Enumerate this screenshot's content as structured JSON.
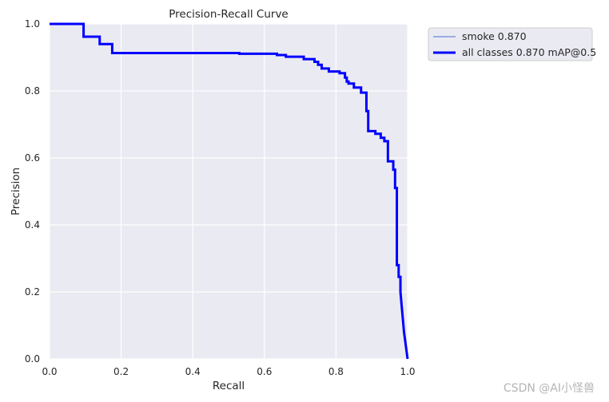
{
  "chart_data": {
    "type": "line",
    "title": "Precision-Recall Curve",
    "xlabel": "Recall",
    "ylabel": "Precision",
    "xlim": [
      0.0,
      1.0
    ],
    "ylim": [
      0.0,
      1.0
    ],
    "xticks": [
      "0.0",
      "0.2",
      "0.4",
      "0.6",
      "0.8",
      "1.0"
    ],
    "yticks": [
      "0.0",
      "0.2",
      "0.4",
      "0.6",
      "0.8",
      "1.0"
    ],
    "grid": true,
    "legend_position": "outside-top-right",
    "series": [
      {
        "name": "smoke 0.870",
        "color": "#4a6fd0",
        "style": "thin",
        "points": [
          [
            0.0,
            1.0
          ],
          [
            0.095,
            1.0
          ],
          [
            0.095,
            0.962
          ],
          [
            0.14,
            0.962
          ],
          [
            0.14,
            0.94
          ],
          [
            0.175,
            0.94
          ],
          [
            0.175,
            0.913
          ],
          [
            0.53,
            0.913
          ],
          [
            0.53,
            0.911
          ],
          [
            0.635,
            0.911
          ],
          [
            0.635,
            0.907
          ],
          [
            0.66,
            0.907
          ],
          [
            0.66,
            0.902
          ],
          [
            0.71,
            0.902
          ],
          [
            0.71,
            0.895
          ],
          [
            0.74,
            0.895
          ],
          [
            0.74,
            0.887
          ],
          [
            0.75,
            0.887
          ],
          [
            0.75,
            0.878
          ],
          [
            0.76,
            0.878
          ],
          [
            0.76,
            0.867
          ],
          [
            0.78,
            0.867
          ],
          [
            0.78,
            0.858
          ],
          [
            0.81,
            0.858
          ],
          [
            0.81,
            0.853
          ],
          [
            0.825,
            0.853
          ],
          [
            0.825,
            0.84
          ],
          [
            0.83,
            0.84
          ],
          [
            0.83,
            0.828
          ],
          [
            0.835,
            0.828
          ],
          [
            0.835,
            0.822
          ],
          [
            0.85,
            0.822
          ],
          [
            0.85,
            0.81
          ],
          [
            0.87,
            0.81
          ],
          [
            0.87,
            0.795
          ],
          [
            0.885,
            0.795
          ],
          [
            0.885,
            0.74
          ],
          [
            0.89,
            0.74
          ],
          [
            0.89,
            0.68
          ],
          [
            0.91,
            0.68
          ],
          [
            0.91,
            0.672
          ],
          [
            0.925,
            0.672
          ],
          [
            0.925,
            0.66
          ],
          [
            0.935,
            0.66
          ],
          [
            0.935,
            0.65
          ],
          [
            0.945,
            0.65
          ],
          [
            0.945,
            0.59
          ],
          [
            0.96,
            0.59
          ],
          [
            0.96,
            0.565
          ],
          [
            0.965,
            0.565
          ],
          [
            0.965,
            0.51
          ],
          [
            0.97,
            0.51
          ],
          [
            0.97,
            0.28
          ],
          [
            0.975,
            0.28
          ],
          [
            0.975,
            0.245
          ],
          [
            0.98,
            0.245
          ],
          [
            0.98,
            0.2
          ],
          [
            0.99,
            0.08
          ],
          [
            1.0,
            0.0
          ]
        ]
      },
      {
        "name": "all classes 0.870 mAP@0.5",
        "color": "#0000ff",
        "style": "thick",
        "points": [
          [
            0.0,
            1.0
          ],
          [
            0.095,
            1.0
          ],
          [
            0.095,
            0.962
          ],
          [
            0.14,
            0.962
          ],
          [
            0.14,
            0.94
          ],
          [
            0.175,
            0.94
          ],
          [
            0.175,
            0.913
          ],
          [
            0.53,
            0.913
          ],
          [
            0.53,
            0.911
          ],
          [
            0.635,
            0.911
          ],
          [
            0.635,
            0.907
          ],
          [
            0.66,
            0.907
          ],
          [
            0.66,
            0.902
          ],
          [
            0.71,
            0.902
          ],
          [
            0.71,
            0.895
          ],
          [
            0.74,
            0.895
          ],
          [
            0.74,
            0.887
          ],
          [
            0.75,
            0.887
          ],
          [
            0.75,
            0.878
          ],
          [
            0.76,
            0.878
          ],
          [
            0.76,
            0.867
          ],
          [
            0.78,
            0.867
          ],
          [
            0.78,
            0.858
          ],
          [
            0.81,
            0.858
          ],
          [
            0.81,
            0.853
          ],
          [
            0.825,
            0.853
          ],
          [
            0.825,
            0.84
          ],
          [
            0.83,
            0.84
          ],
          [
            0.83,
            0.828
          ],
          [
            0.835,
            0.828
          ],
          [
            0.835,
            0.822
          ],
          [
            0.85,
            0.822
          ],
          [
            0.85,
            0.81
          ],
          [
            0.87,
            0.81
          ],
          [
            0.87,
            0.795
          ],
          [
            0.885,
            0.795
          ],
          [
            0.885,
            0.74
          ],
          [
            0.89,
            0.74
          ],
          [
            0.89,
            0.68
          ],
          [
            0.91,
            0.68
          ],
          [
            0.91,
            0.672
          ],
          [
            0.925,
            0.672
          ],
          [
            0.925,
            0.66
          ],
          [
            0.935,
            0.66
          ],
          [
            0.935,
            0.65
          ],
          [
            0.945,
            0.65
          ],
          [
            0.945,
            0.59
          ],
          [
            0.96,
            0.59
          ],
          [
            0.96,
            0.565
          ],
          [
            0.965,
            0.565
          ],
          [
            0.965,
            0.51
          ],
          [
            0.97,
            0.51
          ],
          [
            0.97,
            0.28
          ],
          [
            0.975,
            0.28
          ],
          [
            0.975,
            0.245
          ],
          [
            0.98,
            0.245
          ],
          [
            0.98,
            0.2
          ],
          [
            0.99,
            0.08
          ],
          [
            1.0,
            0.0
          ]
        ]
      }
    ]
  },
  "style": {
    "plot_background": "#eaeaf2",
    "grid_color": "#ffffff"
  },
  "watermark": "CSDN @AI小怪兽"
}
